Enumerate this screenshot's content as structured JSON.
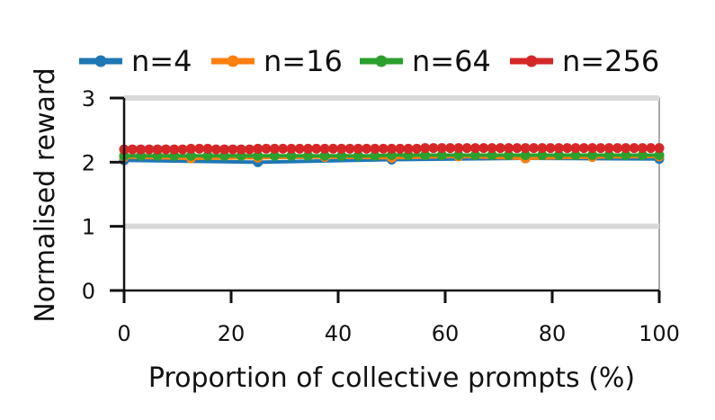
{
  "chart_data": {
    "type": "line",
    "title": "",
    "xlabel": "Proportion of collective prompts (%)",
    "ylabel": "Normalised reward",
    "xlim": [
      0,
      100
    ],
    "ylim": [
      0,
      3
    ],
    "xticks": [
      0,
      20,
      40,
      60,
      80,
      100
    ],
    "yticks": [
      0,
      1,
      2,
      3
    ],
    "xtick_labels": [
      "0",
      "20",
      "40",
      "60",
      "80",
      "100"
    ],
    "ytick_labels": [
      "0",
      "1",
      "2",
      "3"
    ],
    "reference_lines": [
      1,
      3
    ],
    "legend_position": "top",
    "grid": false,
    "series": [
      {
        "name": "n=4",
        "color": "#1f77b4",
        "x": [
          0,
          25,
          50,
          75,
          100
        ],
        "y": [
          2.03,
          2.0,
          2.04,
          2.06,
          2.05
        ]
      },
      {
        "name": "n=16",
        "color": "#ff7f0e",
        "x": [
          0,
          12.5,
          25,
          37.5,
          50,
          62.5,
          75,
          87.5,
          100
        ],
        "y": [
          2.08,
          2.06,
          2.07,
          2.08,
          2.07,
          2.09,
          2.06,
          2.08,
          2.09
        ]
      },
      {
        "name": "n=64",
        "color": "#2ca02c",
        "x": [
          0,
          3.125,
          6.25,
          9.375,
          12.5,
          15.625,
          18.75,
          21.875,
          25,
          28.125,
          31.25,
          34.375,
          37.5,
          40.625,
          43.75,
          46.875,
          50,
          53.125,
          56.25,
          59.375,
          62.5,
          65.625,
          68.75,
          71.875,
          75,
          78.125,
          81.25,
          84.375,
          87.5,
          90.625,
          93.75,
          96.875,
          100
        ],
        "y": [
          2.1,
          2.1,
          2.1,
          2.1,
          2.1,
          2.1,
          2.1,
          2.1,
          2.1,
          2.1,
          2.1,
          2.1,
          2.1,
          2.1,
          2.1,
          2.1,
          2.11,
          2.11,
          2.11,
          2.11,
          2.11,
          2.11,
          2.11,
          2.11,
          2.11,
          2.11,
          2.11,
          2.11,
          2.11,
          2.11,
          2.11,
          2.11,
          2.11
        ]
      },
      {
        "name": "n=256",
        "color": "#d62728",
        "x": [
          0,
          1.5625,
          3.125,
          4.6875,
          6.25,
          7.8125,
          9.375,
          10.9375,
          12.5,
          14.0625,
          15.625,
          17.1875,
          18.75,
          20.3125,
          21.875,
          23.4375,
          25,
          26.5625,
          28.125,
          29.6875,
          31.25,
          32.8125,
          34.375,
          35.9375,
          37.5,
          39.0625,
          40.625,
          42.1875,
          43.75,
          45.3125,
          46.875,
          48.4375,
          50,
          51.5625,
          53.125,
          54.6875,
          56.25,
          57.8125,
          59.375,
          60.9375,
          62.5,
          64.0625,
          65.625,
          67.1875,
          68.75,
          70.3125,
          71.875,
          73.4375,
          75,
          76.5625,
          78.125,
          79.6875,
          81.25,
          82.8125,
          84.375,
          85.9375,
          87.5,
          89.0625,
          90.625,
          92.1875,
          93.75,
          95.3125,
          96.875,
          98.4375,
          100
        ],
        "y": [
          2.2,
          2.2,
          2.2,
          2.2,
          2.2,
          2.2,
          2.2,
          2.2,
          2.21,
          2.21,
          2.21,
          2.2,
          2.2,
          2.2,
          2.2,
          2.2,
          2.21,
          2.21,
          2.21,
          2.21,
          2.21,
          2.21,
          2.21,
          2.21,
          2.21,
          2.21,
          2.21,
          2.21,
          2.21,
          2.21,
          2.21,
          2.21,
          2.21,
          2.21,
          2.21,
          2.21,
          2.22,
          2.22,
          2.22,
          2.22,
          2.22,
          2.22,
          2.22,
          2.22,
          2.22,
          2.22,
          2.22,
          2.22,
          2.22,
          2.22,
          2.22,
          2.22,
          2.22,
          2.22,
          2.22,
          2.22,
          2.22,
          2.22,
          2.22,
          2.22,
          2.22,
          2.22,
          2.22,
          2.22,
          2.22
        ]
      }
    ]
  }
}
